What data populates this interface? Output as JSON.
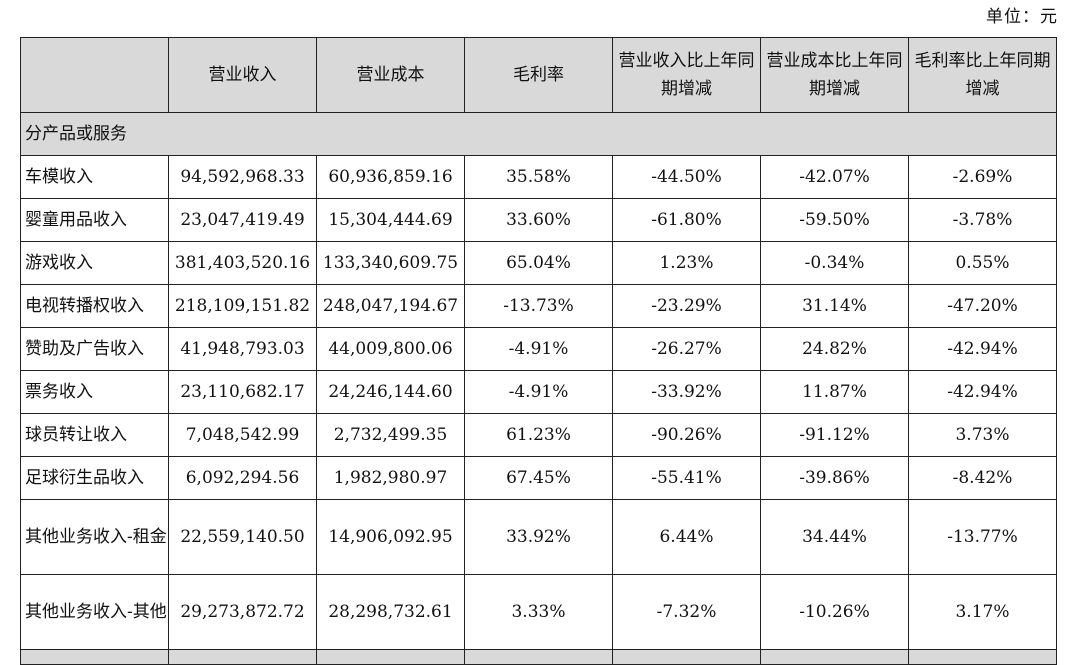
{
  "unit_label": "单位：元",
  "columns": [
    "",
    "营业收入",
    "营业成本",
    "毛利率",
    "营业收入比上年同期增减",
    "营业成本比上年同期增减",
    "毛利率比上年同期增减"
  ],
  "section_label": "分产品或服务",
  "rows": [
    {
      "name": "车模收入",
      "revenue": "94,592,968.33",
      "cost": "60,936,859.16",
      "margin": "35.58%",
      "rev_change": "-44.50%",
      "cost_change": "-42.07%",
      "margin_change": "-2.69%"
    },
    {
      "name": "婴童用品收入",
      "revenue": "23,047,419.49",
      "cost": "15,304,444.69",
      "margin": "33.60%",
      "rev_change": "-61.80%",
      "cost_change": "-59.50%",
      "margin_change": "-3.78%"
    },
    {
      "name": "游戏收入",
      "revenue": "381,403,520.16",
      "cost": "133,340,609.75",
      "margin": "65.04%",
      "rev_change": "1.23%",
      "cost_change": "-0.34%",
      "margin_change": "0.55%"
    },
    {
      "name": "电视转播权收入",
      "revenue": "218,109,151.82",
      "cost": "248,047,194.67",
      "margin": "-13.73%",
      "rev_change": "-23.29%",
      "cost_change": "31.14%",
      "margin_change": "-47.20%"
    },
    {
      "name": "赞助及广告收入",
      "revenue": "41,948,793.03",
      "cost": "44,009,800.06",
      "margin": "-4.91%",
      "rev_change": "-26.27%",
      "cost_change": "24.82%",
      "margin_change": "-42.94%"
    },
    {
      "name": "票务收入",
      "revenue": "23,110,682.17",
      "cost": "24,246,144.60",
      "margin": "-4.91%",
      "rev_change": "-33.92%",
      "cost_change": "11.87%",
      "margin_change": "-42.94%"
    },
    {
      "name": "球员转让收入",
      "revenue": "7,048,542.99",
      "cost": "2,732,499.35",
      "margin": "61.23%",
      "rev_change": "-90.26%",
      "cost_change": "-91.12%",
      "margin_change": "3.73%"
    },
    {
      "name": "足球衍生品收入",
      "revenue": "6,092,294.56",
      "cost": "1,982,980.97",
      "margin": "67.45%",
      "rev_change": "-55.41%",
      "cost_change": "-39.86%",
      "margin_change": "-8.42%"
    },
    {
      "name": "其他业务收入-租金",
      "revenue": "22,559,140.50",
      "cost": "14,906,092.95",
      "margin": "33.92%",
      "rev_change": "6.44%",
      "cost_change": "34.44%",
      "margin_change": "-13.77%"
    },
    {
      "name": "其他业务收入-其他",
      "revenue": "29,273,872.72",
      "cost": "28,298,732.61",
      "margin": "3.33%",
      "rev_change": "-7.32%",
      "cost_change": "-10.26%",
      "margin_change": "3.17%"
    }
  ]
}
